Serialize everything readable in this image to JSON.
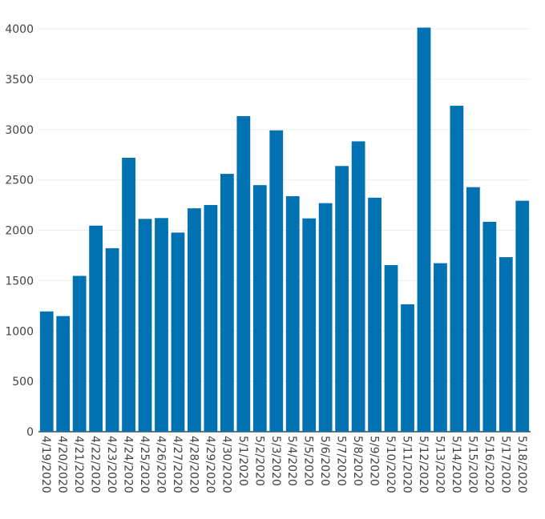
{
  "chart_data": {
    "type": "bar",
    "title": "",
    "xlabel": "",
    "ylabel": "",
    "ylim": [
      0,
      4000
    ],
    "yticks": [
      0,
      500,
      1000,
      1500,
      2000,
      2500,
      3000,
      3500,
      4000
    ],
    "grid": true,
    "legend": "none",
    "bar_color": "#0072b2",
    "categories": [
      "4/19/2020",
      "4/20/2020",
      "4/21/2020",
      "4/22/2020",
      "4/23/2020",
      "4/24/2020",
      "4/25/2020",
      "4/26/2020",
      "4/27/2020",
      "4/28/2020",
      "4/29/2020",
      "4/30/2020",
      "5/1/2020",
      "5/2/2020",
      "5/3/2020",
      "5/4/2020",
      "5/5/2020",
      "5/6/2020",
      "5/7/2020",
      "5/8/2020",
      "5/9/2020",
      "5/10/2020",
      "5/11/2020",
      "5/12/2020",
      "5/13/2020",
      "5/14/2020",
      "5/15/2020",
      "5/16/2020",
      "5/17/2020",
      "5/18/2020"
    ],
    "values": [
      1194,
      1148,
      1547,
      2046,
      1822,
      2720,
      2113,
      2121,
      1977,
      2218,
      2251,
      2560,
      3133,
      2448,
      2992,
      2338,
      2118,
      2269,
      2638,
      2883,
      2323,
      1654,
      1265,
      4012,
      1673,
      3236,
      2428,
      2084,
      1733,
      2293
    ]
  }
}
